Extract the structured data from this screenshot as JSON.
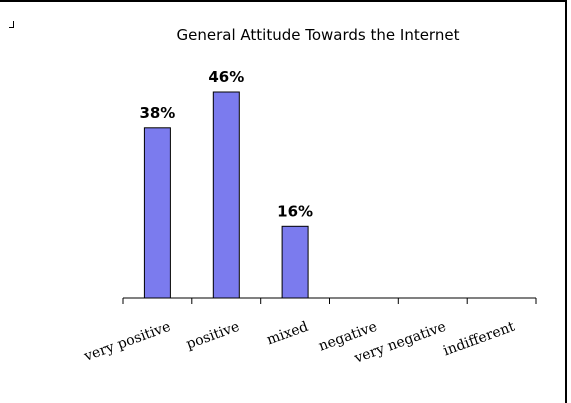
{
  "chart_data": {
    "type": "bar",
    "title": "General Attitude Towards the Internet",
    "categories": [
      "very positive",
      "positive",
      "mixed",
      "negative",
      "very negative",
      "indifferent"
    ],
    "values": [
      38,
      46,
      16,
      0,
      0,
      0
    ],
    "data_labels": [
      "38%",
      "46%",
      "16%",
      "",
      "",
      ""
    ],
    "ylim": [
      0,
      46
    ],
    "grid": false,
    "legend": "none",
    "bar_color": "#7b7bee"
  }
}
